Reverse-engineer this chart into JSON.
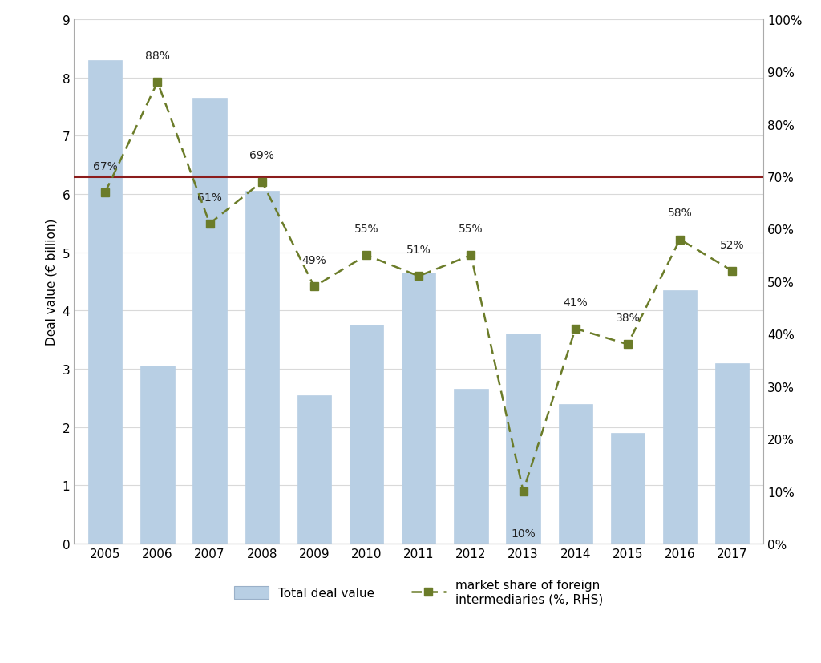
{
  "years": [
    2005,
    2006,
    2007,
    2008,
    2009,
    2010,
    2011,
    2012,
    2013,
    2014,
    2015,
    2016,
    2017
  ],
  "bar_values": [
    8.3,
    3.05,
    7.65,
    6.05,
    2.55,
    3.75,
    4.65,
    2.65,
    3.6,
    2.4,
    1.9,
    4.35,
    3.1
  ],
  "line_values": [
    0.67,
    0.88,
    0.61,
    0.69,
    0.49,
    0.55,
    0.51,
    0.55,
    0.1,
    0.41,
    0.38,
    0.58,
    0.52
  ],
  "line_labels": [
    "67%",
    "88%",
    "61%",
    "69%",
    "49%",
    "55%",
    "51%",
    "55%",
    "10%",
    "41%",
    "38%",
    "58%",
    "52%"
  ],
  "label_offsets_dy": [
    0.04,
    0.04,
    0.04,
    0.04,
    0.04,
    0.04,
    0.04,
    0.04,
    -0.07,
    0.04,
    0.04,
    0.04,
    0.04
  ],
  "bar_color": "#b8cfe4",
  "bar_edgecolor": "#b8cfe4",
  "line_color": "#6b7c29",
  "hline_value": 0.7,
  "hline_color": "#8b1c1c",
  "ylabel_left": "Deal value (€ billion)",
  "ylim_left": [
    0,
    9
  ],
  "ylim_right": [
    0,
    1.0
  ],
  "yticks_left": [
    0,
    1,
    2,
    3,
    4,
    5,
    6,
    7,
    8,
    9
  ],
  "yticks_right": [
    0.0,
    0.1,
    0.2,
    0.3,
    0.4,
    0.5,
    0.6,
    0.7,
    0.8,
    0.9,
    1.0
  ],
  "ytick_labels_right": [
    "0%",
    "10%",
    "20%",
    "30%",
    "40%",
    "50%",
    "60%",
    "70%",
    "80%",
    "90%",
    "100%"
  ],
  "background_color": "#ffffff",
  "plot_area_color": "#ffffff",
  "legend_bar_label": "Total deal value",
  "legend_line_label": "market share of foreign\nintermediaries (%, RHS)",
  "grid_color": "#d9d9d9",
  "spine_color": "#aaaaaa",
  "label_fontsize": 11,
  "tick_fontsize": 11,
  "ylabel_fontsize": 11,
  "annotation_fontsize": 10,
  "hline_linewidth": 2.2
}
